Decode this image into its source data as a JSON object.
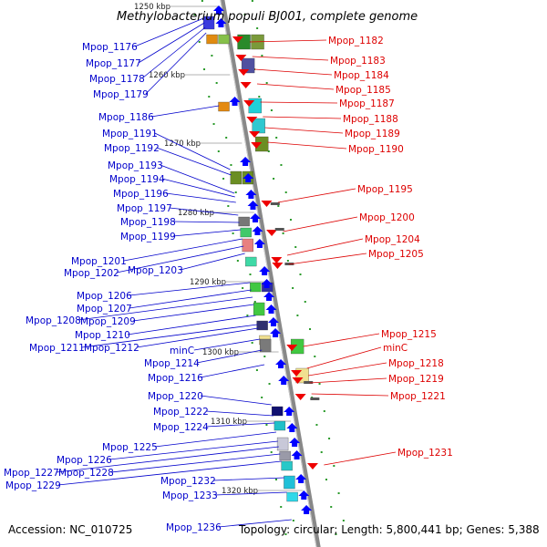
{
  "title": "Methylobacterium populi BJ001, complete genome",
  "footer": {
    "accession": "Accession: NC_010725",
    "topology": "Topology: circular; Length: 5,800,441 bp; Genes: 5,388"
  },
  "kbp_ticks": [
    "1250 kbp",
    "1260 kbp",
    "1270 kbp",
    "1280 kbp",
    "1290 kbp",
    "1300 kbp",
    "1310 kbp",
    "1320 kbp"
  ],
  "left_labels": [
    "Mpop_1176",
    "Mpop_1177",
    "Mpop_1178",
    "Mpop_1179",
    "Mpop_1186",
    "Mpop_1191",
    "Mpop_1192",
    "Mpop_1193",
    "Mpop_1194",
    "Mpop_1196",
    "Mpop_1197",
    "Mpop_1198",
    "Mpop_1199",
    "Mpop_1201",
    "Mpop_1202",
    "Mpop_1203",
    "Mpop_1206",
    "Mpop_1207",
    "Mpop_1208",
    "Mpop_1209",
    "Mpop_1210",
    "Mpop_1211",
    "Mpop_1212",
    "minC",
    "Mpop_1214",
    "Mpop_1216",
    "Mpop_1220",
    "Mpop_1222",
    "Mpop_1224",
    "Mpop_1225",
    "Mpop_1226",
    "Mpop_1227",
    "Mpop_1228",
    "Mpop_1229",
    "Mpop_1232",
    "Mpop_1233",
    "Mpop_1236"
  ],
  "right_labels": [
    "Mpop_1182",
    "Mpop_1183",
    "Mpop_1184",
    "Mpop_1185",
    "Mpop_1187",
    "Mpop_1188",
    "Mpop_1189",
    "Mpop_1190",
    "Mpop_1195",
    "Mpop_1200",
    "Mpop_1204",
    "Mpop_1205",
    "Mpop_1215",
    "minC",
    "Mpop_1218",
    "Mpop_1219",
    "Mpop_1221",
    "Mpop_1231"
  ],
  "colors": {
    "left_label": "#0000cc",
    "right_label": "#dd0000",
    "forward_arrow": "#0000ff",
    "reverse_arrow": "#ee0000",
    "backbone": "#888888",
    "tick_green": "#2a9a2a"
  }
}
